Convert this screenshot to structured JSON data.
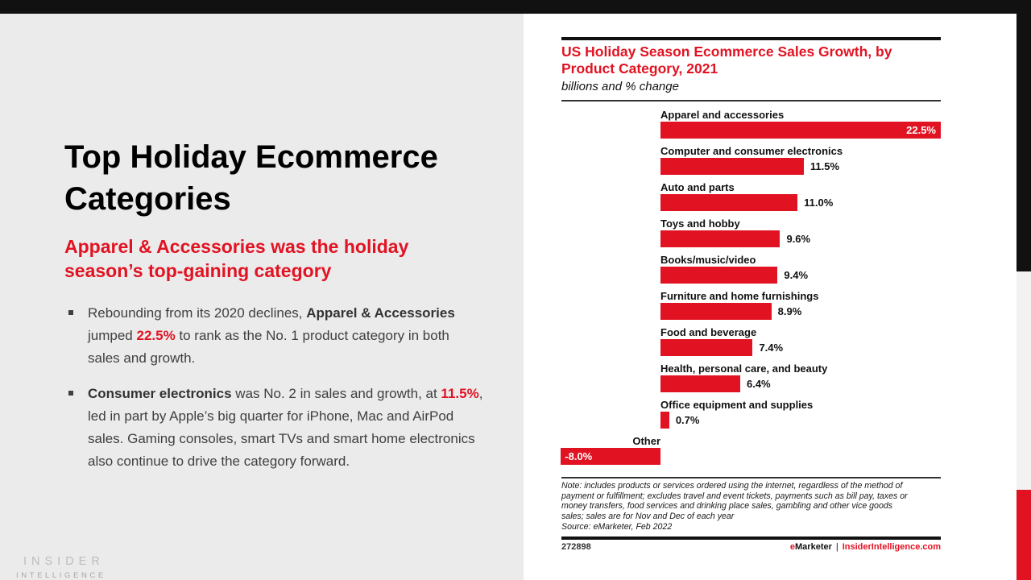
{
  "colors": {
    "accent_red": "#e11322",
    "bar_black": "#111111",
    "left_panel_bg": "#ebebeb",
    "edge_gray": "#f2f2f2"
  },
  "left_panel": {
    "title_lines": [
      "Top Holiday Ecommerce",
      "Categories"
    ],
    "subtitle_lines": [
      "Apparel & Accessories was the holiday",
      "season’s top-gaining category"
    ],
    "bullets": [
      {
        "segments": [
          {
            "text": "Rebounding from its 2020 declines, ",
            "style": ""
          },
          {
            "text": "Apparel & Accessories",
            "style": "b"
          },
          {
            "text": " jumped ",
            "style": ""
          },
          {
            "text": "22.5%",
            "style": "rb"
          },
          {
            "text": " to rank as the No. 1 product category in both sales and growth.",
            "style": ""
          }
        ]
      },
      {
        "segments": [
          {
            "text": "Consumer electronics",
            "style": "b"
          },
          {
            "text": " was No. 2 in sales and growth, at ",
            "style": ""
          },
          {
            "text": "11.5%",
            "style": "rb"
          },
          {
            "text": ", led in part by Apple’s big quarter for iPhone, Mac and AirPod sales. Gaming consoles, smart TVs and smart home electronics also continue to drive the category forward.",
            "style": ""
          }
        ]
      }
    ],
    "logo": {
      "line1": "INSIDER",
      "line2": "INTELLIGENCE"
    }
  },
  "chart": {
    "title_lines": [
      "US Holiday Season Ecommerce Sales Growth, by",
      "Product Category, 2021"
    ],
    "subtitle": "billions and % change",
    "note_lines": [
      "Note: includes products or services ordered using the internet, regardless of the method of",
      "payment or fulfillment; excludes travel and event tickets, payments such as bill pay, taxes or",
      "money transfers, food services and drinking place sales, gambling and other vice goods",
      "sales; sales are for Nov and Dec of each year",
      "Source: eMarketer, Feb 2022"
    ],
    "footer": {
      "chart_id": "272898",
      "brand_first_letter": "e",
      "brand_rest": "Marketer",
      "separator": "|",
      "site": "InsiderIntelligence.com"
    }
  },
  "chart_data": {
    "type": "bar",
    "orientation": "horizontal",
    "title": "US Holiday Season Ecommerce Sales Growth, by Product Category, 2021",
    "subtitle": "billions and % change",
    "unit": "% change",
    "xlim": [
      -8.0,
      22.5
    ],
    "bar_color": "#e11322",
    "grid": false,
    "legend": false,
    "categories": [
      "Apparel and accessories",
      "Computer and consumer electronics",
      "Auto and parts",
      "Toys and hobby",
      "Books/music/video",
      "Furniture and home furnishings",
      "Food and beverage",
      "Health, personal care, and beauty",
      "Office equipment and supplies",
      "Other"
    ],
    "values": [
      22.5,
      11.5,
      11.0,
      9.6,
      9.4,
      8.9,
      7.4,
      6.4,
      0.7,
      -8.0
    ],
    "labels": [
      "22.5%",
      "11.5%",
      "11.0%",
      "9.6%",
      "9.4%",
      "8.9%",
      "7.4%",
      "6.4%",
      "0.7%",
      "-8.0%"
    ],
    "label_inside": [
      true,
      false,
      false,
      false,
      false,
      false,
      false,
      false,
      false,
      true
    ]
  }
}
